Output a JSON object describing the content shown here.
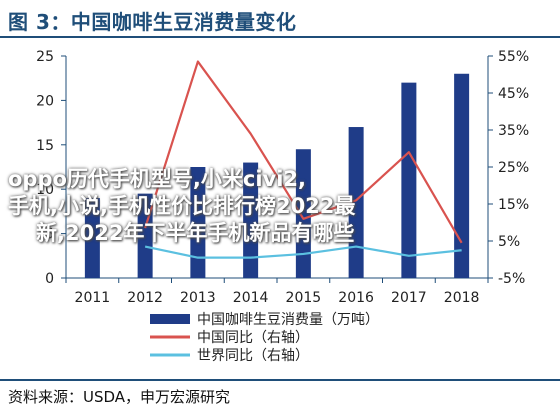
{
  "figure": {
    "title": "图 3：中国咖啡生豆消费量变化",
    "source": "资料来源：USDA，申万宏源研究"
  },
  "overlay_text": {
    "line1": "oppo历代手机型号,小米civi2,",
    "line2": "手机,小说,手机性价比排行榜2022最",
    "line3": "新,2022年下半年手机新品有哪些"
  },
  "colors": {
    "bars": "#1f3c88",
    "china_yoy": "#d9534f",
    "world_yoy": "#5bc0e0",
    "axis": "#1f4e79",
    "title": "#1f4e79"
  },
  "chart_data": {
    "type": "bar",
    "categories": [
      "2011",
      "2012",
      "2013",
      "2014",
      "2015",
      "2016",
      "2017",
      "2018"
    ],
    "series": [
      {
        "name": "中国咖啡生豆消费量（万吨）",
        "kind": "bar",
        "axis": "left",
        "values": [
          9,
          9.5,
          12.5,
          13,
          14.5,
          17,
          22,
          23
        ]
      },
      {
        "name": "中国同比（右轴）",
        "kind": "line",
        "axis": "right",
        "values": [
          null,
          8.5,
          53.5,
          34,
          11,
          16,
          29,
          4.5
        ]
      },
      {
        "name": "世界同比（右轴）",
        "kind": "line",
        "axis": "right",
        "values": [
          null,
          3.5,
          0.5,
          0.5,
          1.5,
          3.5,
          1.0,
          2.5
        ]
      }
    ],
    "y_left": {
      "ylim": [
        0,
        25
      ],
      "ticks": [
        "0",
        "5",
        "10",
        "15",
        "20",
        "25"
      ]
    },
    "y_right": {
      "ylim": [
        -5,
        55
      ],
      "ticks": [
        "-5%",
        "5%",
        "15%",
        "25%",
        "35%",
        "45%",
        "55%"
      ]
    },
    "grid": false,
    "legend_position": "bottom-center"
  }
}
